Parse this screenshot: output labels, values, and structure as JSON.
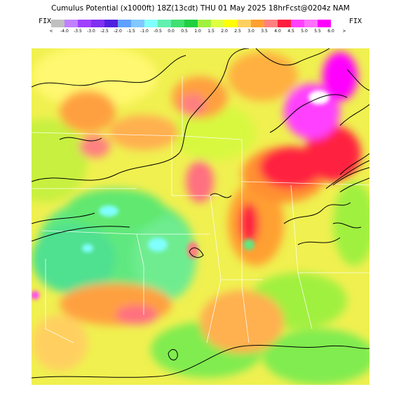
{
  "header": {
    "title": "Cumulus Potential (x1000ft) 18Z(13cdt) THU 01 May 2025 18hrFcst@0204z NAM",
    "fix_left": "FIX",
    "fix_right": "FIX"
  },
  "legend": {
    "lt_symbol": "<",
    "gt_symbol": ">",
    "labels": [
      "-4.0",
      "-3.5",
      "-3.0",
      "-2.5",
      "-2.0",
      "-1.5",
      "-1.0",
      "-0.5",
      "0.0",
      "0.5",
      "1.0",
      "1.5",
      "2.0",
      "2.5",
      "3.0",
      "3.5",
      "4.0",
      "4.5",
      "5.0",
      "5.5",
      "6.0"
    ],
    "colors": [
      "#c0c0c0",
      "#c080ff",
      "#a040ff",
      "#8030f0",
      "#5020e0",
      "#60a0ff",
      "#80c8ff",
      "#80ffff",
      "#60f0b0",
      "#40e070",
      "#20d040",
      "#a0f040",
      "#e0ff40",
      "#ffff00",
      "#ffd060",
      "#ffa030",
      "#ff8080",
      "#ff2040",
      "#ff40ff",
      "#ff70ff",
      "#ff00ff"
    ]
  },
  "map": {
    "description_colors": {
      "background": "#f8f860"
    }
  }
}
